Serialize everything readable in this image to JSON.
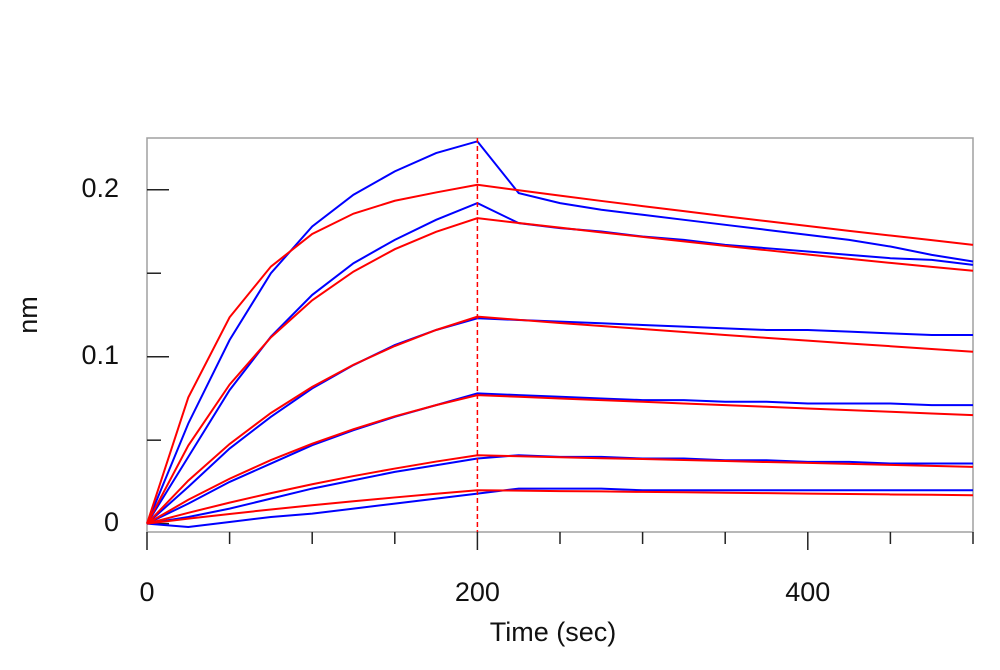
{
  "chart_data": {
    "type": "line",
    "xlabel": "Time (sec)",
    "ylabel": "nm",
    "x": [
      0,
      25,
      50,
      75,
      100,
      125,
      150,
      175,
      200,
      225,
      250,
      275,
      300,
      325,
      350,
      375,
      400,
      425,
      450,
      475,
      500
    ],
    "xlim": [
      0,
      500
    ],
    "ylim": [
      -0.005,
      0.231
    ],
    "xticks": [
      0,
      200,
      400
    ],
    "yticks": [
      0,
      0.1,
      0.2
    ],
    "x_minor_ticks": [
      50,
      100,
      150,
      250,
      300,
      350,
      450,
      500
    ],
    "y_minor_ticks": [
      0.05,
      0.15
    ],
    "marker_x": 200,
    "marker_color": "#ff0000",
    "series": [
      {
        "color": "#0000ff",
        "values": [
          0,
          0.06,
          0.11,
          0.15,
          0.178,
          0.197,
          0.211,
          0.222,
          0.229,
          0.198,
          0.192,
          0.188,
          0.185,
          0.182,
          0.179,
          0.176,
          0.173,
          0.17,
          0.166,
          0.161,
          0.157
        ]
      },
      {
        "color": "#0000ff",
        "values": [
          0,
          0.04,
          0.08,
          0.112,
          0.137,
          0.156,
          0.17,
          0.182,
          0.192,
          0.18,
          0.177,
          0.175,
          0.172,
          0.17,
          0.167,
          0.165,
          0.163,
          0.161,
          0.159,
          0.158,
          0.155
        ]
      },
      {
        "color": "#0000ff",
        "values": [
          0,
          0.022,
          0.045,
          0.064,
          0.081,
          0.095,
          0.107,
          0.116,
          0.123,
          0.122,
          0.121,
          0.12,
          0.119,
          0.118,
          0.117,
          0.116,
          0.116,
          0.115,
          0.114,
          0.113,
          0.113
        ]
      },
      {
        "color": "#0000ff",
        "values": [
          0,
          0.012,
          0.025,
          0.036,
          0.047,
          0.056,
          0.064,
          0.071,
          0.078,
          0.077,
          0.076,
          0.075,
          0.074,
          0.074,
          0.073,
          0.073,
          0.072,
          0.072,
          0.072,
          0.071,
          0.071
        ]
      },
      {
        "color": "#0000ff",
        "values": [
          0,
          0.004,
          0.009,
          0.015,
          0.021,
          0.026,
          0.031,
          0.035,
          0.039,
          0.041,
          0.04,
          0.04,
          0.039,
          0.039,
          0.038,
          0.038,
          0.037,
          0.037,
          0.036,
          0.036,
          0.036
        ]
      },
      {
        "color": "#0000ff",
        "values": [
          0,
          -0.002,
          0.001,
          0.004,
          0.006,
          0.009,
          0.012,
          0.015,
          0.018,
          0.021,
          0.021,
          0.021,
          0.02,
          0.02,
          0.02,
          0.02,
          0.02,
          0.02,
          0.02,
          0.02,
          0.02
        ]
      },
      {
        "color": "#ff0000",
        "values": [
          0,
          0.0756,
          0.1236,
          0.154,
          0.1735,
          0.1857,
          0.1934,
          0.1984,
          0.203,
          0.1997,
          0.1965,
          0.1933,
          0.1902,
          0.1872,
          0.1841,
          0.1812,
          0.1783,
          0.1754,
          0.1726,
          0.1698,
          0.167
        ]
      },
      {
        "color": "#ff0000",
        "values": [
          0,
          0.0468,
          0.0833,
          0.1116,
          0.1338,
          0.151,
          0.1644,
          0.1748,
          0.183,
          0.1801,
          0.1773,
          0.1745,
          0.1718,
          0.1691,
          0.1664,
          0.1638,
          0.1612,
          0.1587,
          0.1562,
          0.1538,
          0.1515
        ]
      },
      {
        "color": "#ff0000",
        "values": [
          0,
          0.0258,
          0.0477,
          0.0663,
          0.0819,
          0.0952,
          0.1064,
          0.116,
          0.124,
          0.1221,
          0.1202,
          0.1184,
          0.1166,
          0.1148,
          0.113,
          0.1113,
          0.1096,
          0.1079,
          0.1063,
          0.1046,
          0.103
        ]
      },
      {
        "color": "#ff0000",
        "values": [
          0,
          0.0143,
          0.0269,
          0.0381,
          0.0479,
          0.0566,
          0.0643,
          0.071,
          0.077,
          0.076,
          0.075,
          0.074,
          0.073,
          0.072,
          0.071,
          0.07,
          0.069,
          0.068,
          0.067,
          0.066,
          0.065
        ]
      },
      {
        "color": "#ff0000",
        "values": [
          0,
          0.0065,
          0.0126,
          0.0183,
          0.0236,
          0.0285,
          0.033,
          0.0372,
          0.041,
          0.0404,
          0.0398,
          0.0392,
          0.0387,
          0.0381,
          0.0375,
          0.0369,
          0.0364,
          0.0358,
          0.0352,
          0.0346,
          0.034
        ]
      },
      {
        "color": "#ff0000",
        "values": [
          0,
          0.003,
          0.0058,
          0.0085,
          0.011,
          0.0134,
          0.0157,
          0.0179,
          0.02,
          0.0198,
          0.0195,
          0.0193,
          0.019,
          0.0188,
          0.0185,
          0.0183,
          0.018,
          0.0178,
          0.0175,
          0.0173,
          0.017
        ]
      }
    ]
  }
}
